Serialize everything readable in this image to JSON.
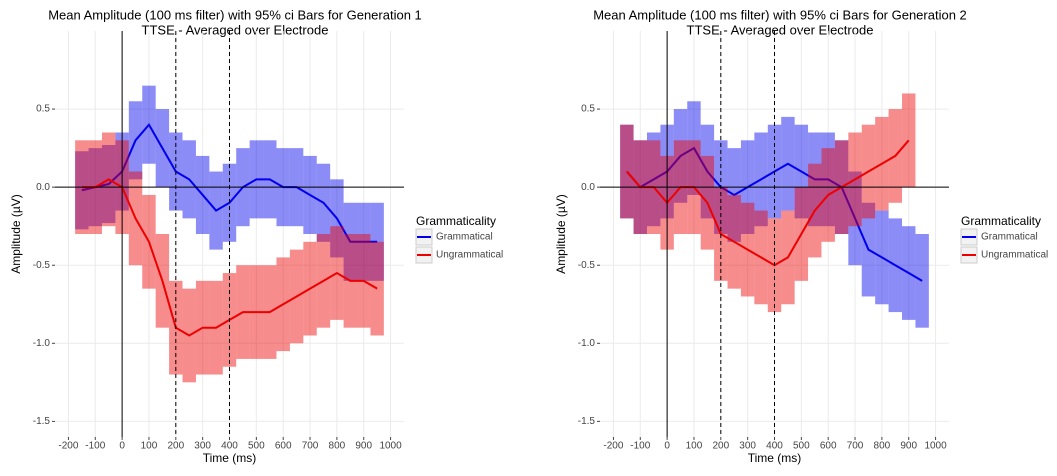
{
  "chart_data": [
    {
      "type": "line",
      "title": "Mean Amplitude (100 ms filter) with 95% ci Bars for Generation 1",
      "subtitle": "TTSE - Averaged over Electrode",
      "x_label": "Time (ms)",
      "y_label": "Amplitude (µV)",
      "legend_title": "Grammaticality",
      "legend": "right",
      "grid": true,
      "x": [
        -150,
        -100,
        -50,
        0,
        50,
        100,
        150,
        200,
        250,
        300,
        350,
        400,
        450,
        500,
        550,
        600,
        650,
        700,
        750,
        800,
        850,
        900,
        950
      ],
      "series": [
        {
          "name": "Grammatical",
          "color": "#0000ee",
          "values": [
            -0.02,
            0.0,
            0.02,
            0.1,
            0.3,
            0.4,
            0.25,
            0.1,
            0.05,
            -0.05,
            -0.15,
            -0.1,
            0.0,
            0.05,
            0.05,
            0.0,
            0.0,
            -0.05,
            -0.1,
            -0.2,
            -0.35,
            -0.35,
            -0.35
          ],
          "errors": [
            0.25,
            0.25,
            0.25,
            0.25,
            0.25,
            0.25,
            0.25,
            0.25,
            0.25,
            0.25,
            0.25,
            0.25,
            0.25,
            0.25,
            0.25,
            0.25,
            0.25,
            0.25,
            0.25,
            0.25,
            0.25,
            0.25,
            0.25
          ]
        },
        {
          "name": "Ungrammatical",
          "color": "#ee0000",
          "values": [
            0.0,
            0.0,
            0.05,
            0.0,
            -0.2,
            -0.35,
            -0.6,
            -0.9,
            -0.95,
            -0.9,
            -0.9,
            -0.85,
            -0.8,
            -0.8,
            -0.8,
            -0.75,
            -0.7,
            -0.65,
            -0.6,
            -0.55,
            -0.6,
            -0.6,
            -0.65
          ],
          "errors": [
            0.3,
            0.3,
            0.3,
            0.3,
            0.3,
            0.3,
            0.3,
            0.3,
            0.3,
            0.3,
            0.3,
            0.3,
            0.3,
            0.3,
            0.3,
            0.3,
            0.3,
            0.3,
            0.3,
            0.3,
            0.3,
            0.3,
            0.3
          ]
        }
      ],
      "xlim": [
        -250,
        1050
      ],
      "xticks": [
        -200,
        -100,
        0,
        100,
        200,
        300,
        400,
        500,
        600,
        700,
        800,
        900,
        1000
      ],
      "ylim": [
        -1.6,
        1.0
      ],
      "yticks": [
        -1.5,
        {
          "value": -1.0,
          "label": "-1.0"
        },
        -0.5,
        {
          "value": 0,
          "label": "0.0"
        },
        0.5
      ],
      "vlines": [
        0
      ],
      "hlines": [
        0
      ],
      "dashed_vlines": [
        200,
        400
      ]
    },
    {
      "type": "line",
      "title": "Mean Amplitude (100 ms filter) with 95% ci Bars for Generation 2",
      "subtitle": "TTSE - Averaged over Electrode",
      "x_label": "Time (ms)",
      "y_label": "Amplitude (µV)",
      "legend_title": "Grammaticality",
      "legend": "right",
      "grid": true,
      "x": [
        -150,
        -100,
        -50,
        0,
        50,
        100,
        150,
        200,
        250,
        300,
        350,
        400,
        450,
        500,
        550,
        600,
        650,
        700,
        750,
        800,
        850,
        900,
        950
      ],
      "series": [
        {
          "name": "Grammatical",
          "color": "#0000ee",
          "values": [
            0.1,
            0.0,
            0.05,
            0.1,
            0.2,
            0.25,
            0.1,
            0.0,
            -0.05,
            0.0,
            0.05,
            0.1,
            0.15,
            0.1,
            0.05,
            0.05,
            0.0,
            -0.2,
            -0.4,
            -0.45,
            -0.5,
            -0.55,
            -0.6
          ],
          "errors": [
            0.3,
            0.3,
            0.3,
            0.3,
            0.3,
            0.3,
            0.3,
            0.3,
            0.3,
            0.3,
            0.3,
            0.3,
            0.3,
            0.3,
            0.3,
            0.3,
            0.3,
            0.3,
            0.3,
            0.3,
            0.3,
            0.3,
            0.3
          ]
        },
        {
          "name": "Ungrammatical",
          "color": "#ee0000",
          "values": [
            0.1,
            0.0,
            0.0,
            -0.1,
            0.0,
            0.0,
            -0.1,
            -0.3,
            -0.35,
            -0.4,
            -0.45,
            -0.5,
            -0.45,
            -0.3,
            -0.15,
            -0.05,
            0.0,
            0.05,
            0.1,
            0.15,
            0.2,
            0.3,
            null
          ],
          "errors": [
            0.3,
            0.3,
            0.3,
            0.3,
            0.3,
            0.3,
            0.3,
            0.3,
            0.3,
            0.3,
            0.3,
            0.3,
            0.3,
            0.3,
            0.3,
            0.3,
            0.3,
            0.3,
            0.3,
            0.3,
            0.3,
            0.3,
            null
          ]
        }
      ],
      "xlim": [
        -250,
        1050
      ],
      "xticks": [
        -200,
        -100,
        0,
        100,
        200,
        300,
        400,
        500,
        600,
        700,
        800,
        900,
        1000
      ],
      "ylim": [
        -1.6,
        1.0
      ],
      "yticks": [
        -1.5,
        {
          "value": -1.0,
          "label": "-1.0"
        },
        -0.5,
        {
          "value": 0,
          "label": "0.0"
        },
        0.5
      ],
      "vlines": [
        0
      ],
      "hlines": [
        0
      ],
      "dashed_vlines": [
        200,
        400
      ]
    }
  ]
}
